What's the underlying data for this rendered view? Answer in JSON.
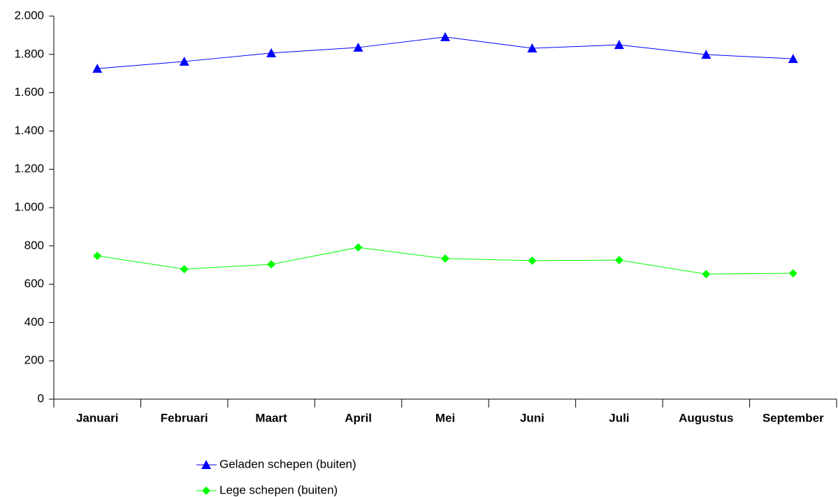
{
  "chart_data": {
    "type": "line",
    "categories": [
      "Januari",
      "Februari",
      "Maart",
      "April",
      "Mei",
      "Juni",
      "Juli",
      "Augustus",
      "September"
    ],
    "series": [
      {
        "name": "Geladen schepen (buiten)",
        "color": "#0000ff",
        "marker": "triangle",
        "values": [
          1726,
          1763,
          1807,
          1836,
          1891,
          1832,
          1850,
          1799,
          1777
        ]
      },
      {
        "name": "Lege schepen (buiten)",
        "color": "#00ff00",
        "marker": "diamond",
        "values": [
          748,
          679,
          704,
          792,
          734,
          723,
          726,
          653,
          657
        ]
      }
    ],
    "ylim": [
      0,
      2000
    ],
    "yticks": [
      0,
      200,
      400,
      600,
      800,
      {
        "value": 1000,
        "label": "1.000"
      },
      {
        "value": 1200,
        "label": "1.200"
      },
      {
        "value": 1400,
        "label": "1.400"
      },
      {
        "value": 1600,
        "label": "1.600"
      },
      {
        "value": 1800,
        "label": "1.800"
      },
      {
        "value": 2000,
        "label": "2.000"
      }
    ],
    "grid": false,
    "legend": "bottom"
  }
}
